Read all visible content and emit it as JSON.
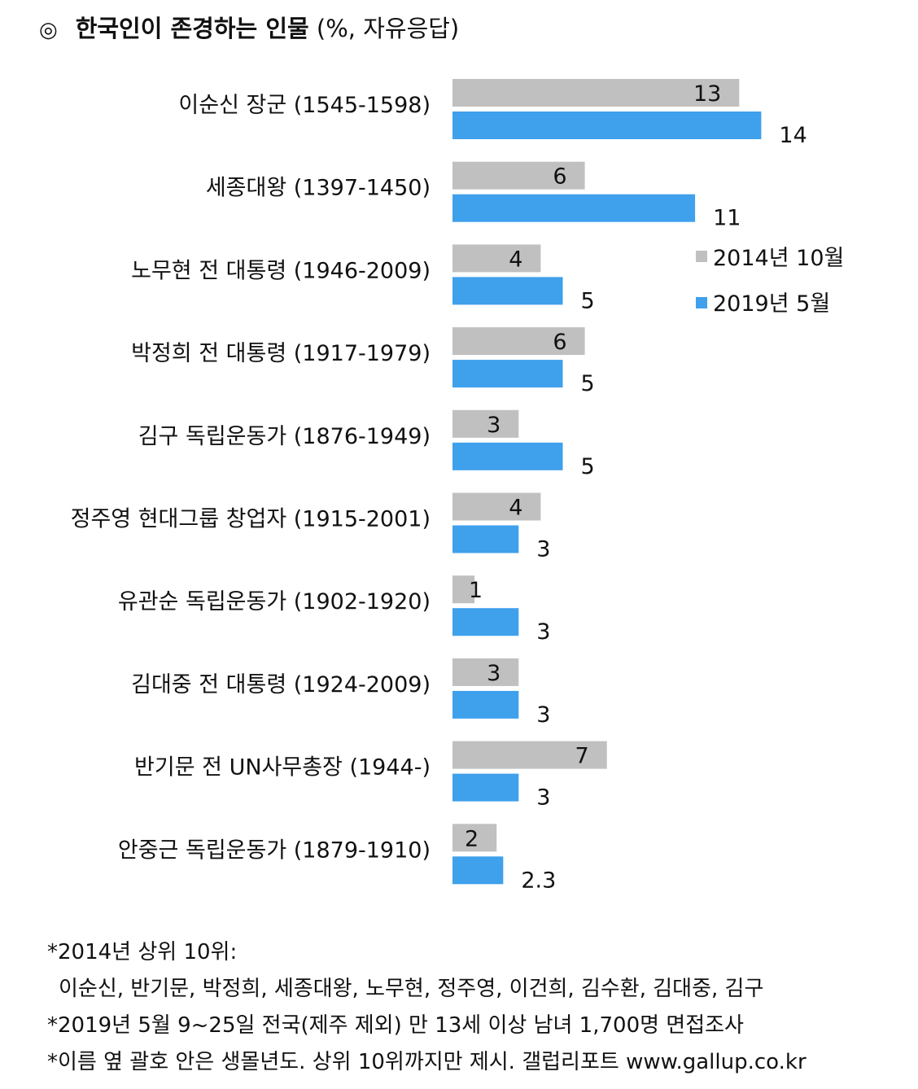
{
  "title": {
    "mark": "◎",
    "main": "한국인이 존경하는 인물",
    "sub": "(%, 자유응답)"
  },
  "chart_data": {
    "type": "bar",
    "orientation": "horizontal",
    "categories": [
      "이순신 장군 (1545-1598)",
      "세종대왕 (1397-1450)",
      "노무현 전 대통령 (1946-2009)",
      "박정희 전 대통령 (1917-1979)",
      "김구 독립운동가 (1876-1949)",
      "정주영 현대그룹 창업자 (1915-2001)",
      "유관순 독립운동가 (1902-1920)",
      "김대중 전 대통령 (1924-2009)",
      "반기문 전 UN사무총장 (1944-)",
      "안중근 독립운동가 (1879-1910)"
    ],
    "series": [
      {
        "name": "2014년 10월",
        "color": "#c0c0c0",
        "values": [
          13,
          6,
          4,
          6,
          3,
          4,
          1,
          3,
          7,
          2
        ],
        "labels": [
          "13",
          "6",
          "4",
          "6",
          "3",
          "4",
          "1",
          "3",
          "7",
          "2"
        ]
      },
      {
        "name": "2019년 5월",
        "color": "#3fa0ec",
        "values": [
          14,
          11,
          5,
          5,
          5,
          3,
          3,
          3,
          3,
          2.3
        ],
        "labels": [
          "14",
          "11",
          "5",
          "5",
          "5",
          "3",
          "3",
          "3",
          "3",
          "2.3"
        ]
      }
    ],
    "legend_position": "right",
    "grid": false
  },
  "footnotes": [
    "*2014년 상위 10위:",
    "이순신, 반기문, 박정희, 세종대왕, 노무현, 정주영, 이건희, 김수환, 김대중, 김구",
    "*2019년 5월 9~25일 전국(제주 제외) 만 13세 이상 남녀 1,700명 면접조사",
    "*이름 옆 괄호 안은 생몰년도. 상위 10위까지만 제시. 갤럽리포트 www.gallup.co.kr"
  ]
}
